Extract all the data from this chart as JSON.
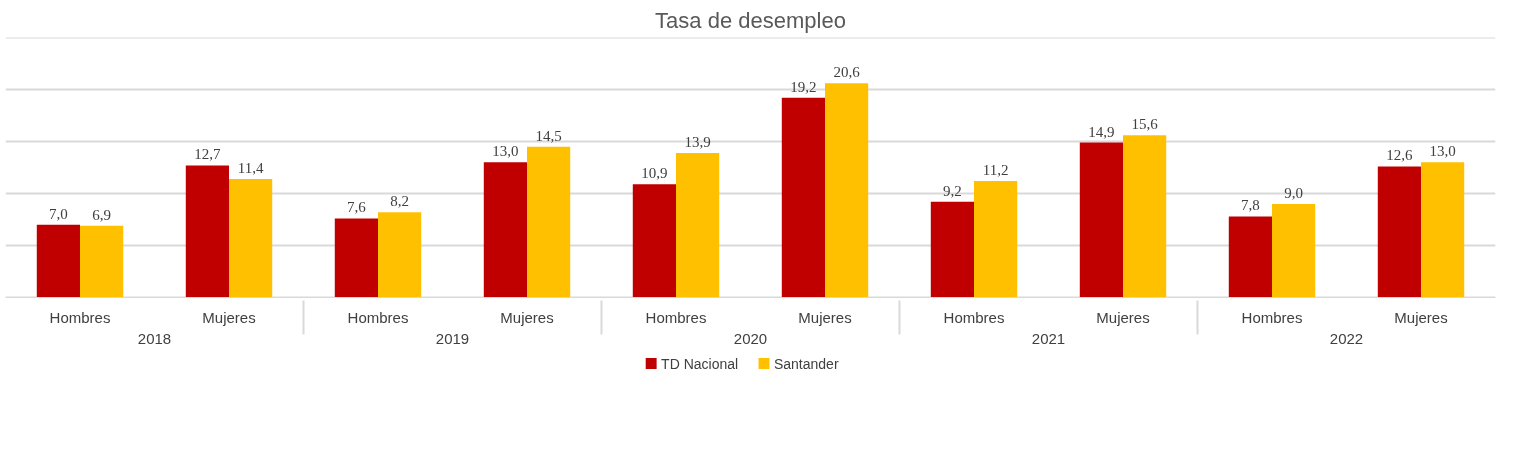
{
  "chart_data": {
    "type": "bar",
    "title": "Tasa de desempleo",
    "categories": [
      "Hombres",
      "Mujeres",
      "Hombres",
      "Mujeres",
      "Hombres",
      "Mujeres",
      "Hombres",
      "Mujeres",
      "Hombres",
      "Mujeres"
    ],
    "annotations": [
      "2018",
      "2019",
      "2020",
      "2021",
      "2022"
    ],
    "series": [
      {
        "name": "TD Nacional",
        "color": "#c00000",
        "values": [
          7.0,
          12.7,
          7.6,
          13.0,
          10.9,
          19.2,
          9.2,
          14.9,
          7.8,
          12.6
        ],
        "value_labels": [
          "7,0",
          "12,7",
          "7,6",
          "13,0",
          "10,9",
          "19,2",
          "9,2",
          "14,9",
          "7,8",
          "12,6"
        ]
      },
      {
        "name": "Santander",
        "color": "#ffc000",
        "values": [
          6.9,
          11.4,
          8.2,
          14.5,
          13.9,
          20.6,
          11.2,
          15.6,
          9.0,
          13.0
        ],
        "value_labels": [
          "6,9",
          "11,4",
          "8,2",
          "14,5",
          "13,9",
          "20,6",
          "11,2",
          "15,6",
          "9,0",
          "13,0"
        ]
      }
    ],
    "ylim": [
      0,
      25
    ],
    "yticks": [
      0,
      5,
      10,
      15,
      20,
      25
    ],
    "tick_labels": "x",
    "grid": "y",
    "legend": "bottom"
  }
}
